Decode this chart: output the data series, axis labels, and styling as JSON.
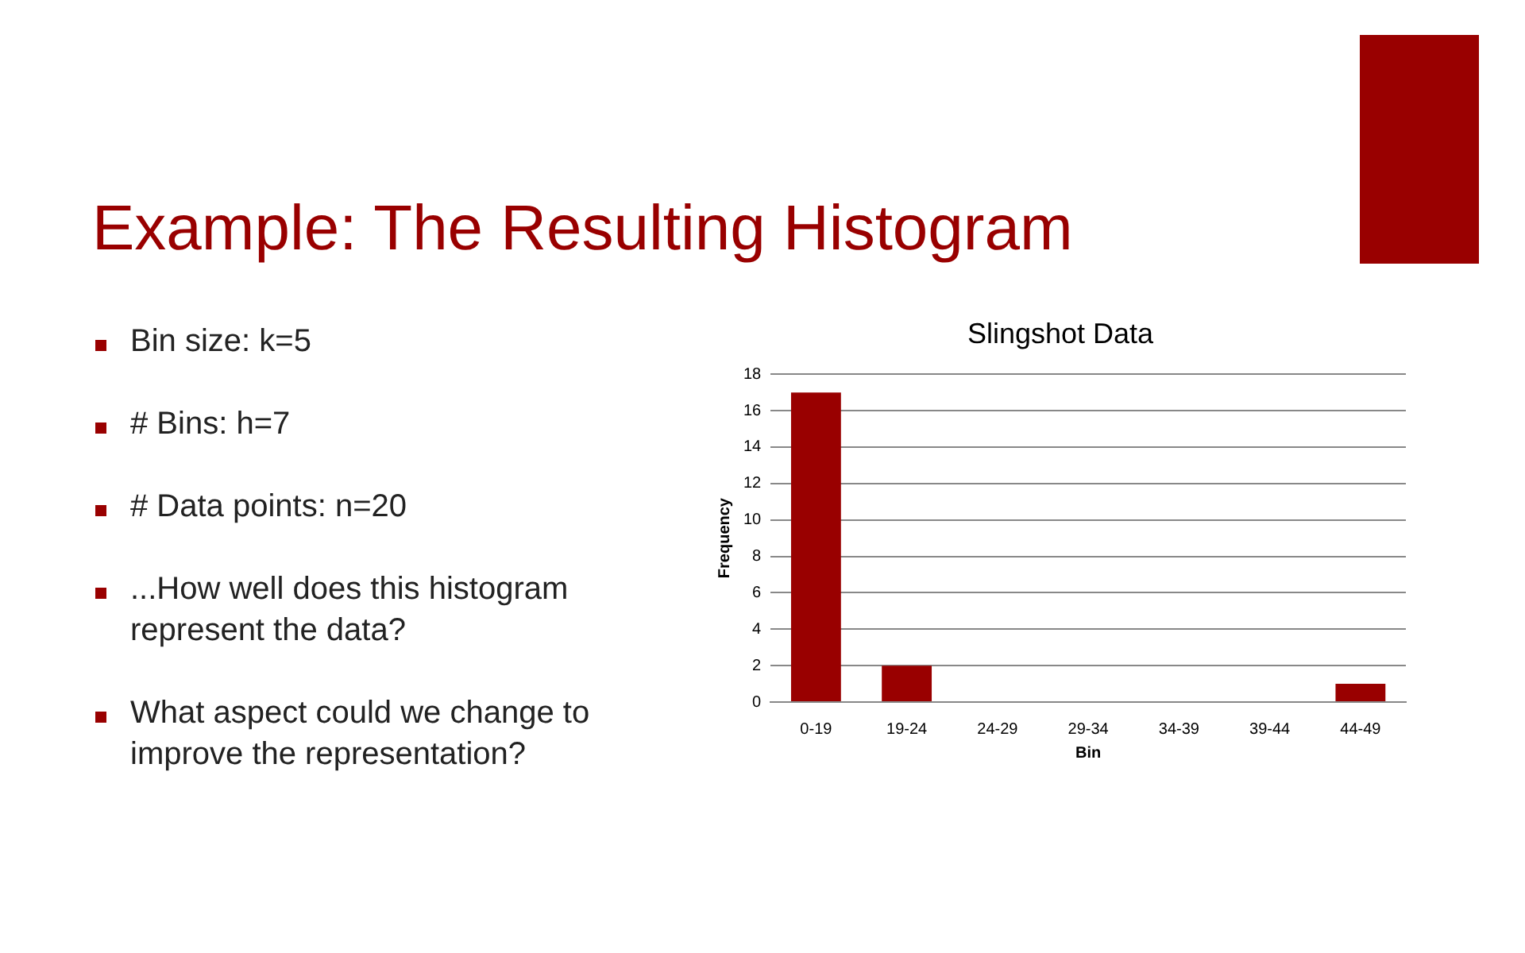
{
  "chart_data": {
    "type": "bar",
    "title": "Example: The Resulting Histogram",
    "subtitle": "Slingshot Data",
    "xlabel": "Bin",
    "ylabel": "Frequency",
    "categories": [
      "0-19",
      "19-24",
      "24-29",
      "29-34",
      "34-39",
      "39-44",
      "44-49"
    ],
    "values": [
      17,
      2,
      0,
      0,
      0,
      0,
      1
    ],
    "color": "#990000",
    "ylim": [
      0,
      18
    ],
    "yticks": [
      0,
      2,
      4,
      6,
      8,
      10,
      12,
      14,
      16,
      18
    ],
    "grid": "y",
    "legend": false,
    "annotations": [
      "Bin size: k=5",
      "# Bins: h=7",
      "# Data points: n=20",
      "...How well does this histogram represent the data?",
      "What aspect could we change to improve the representation?"
    ]
  }
}
